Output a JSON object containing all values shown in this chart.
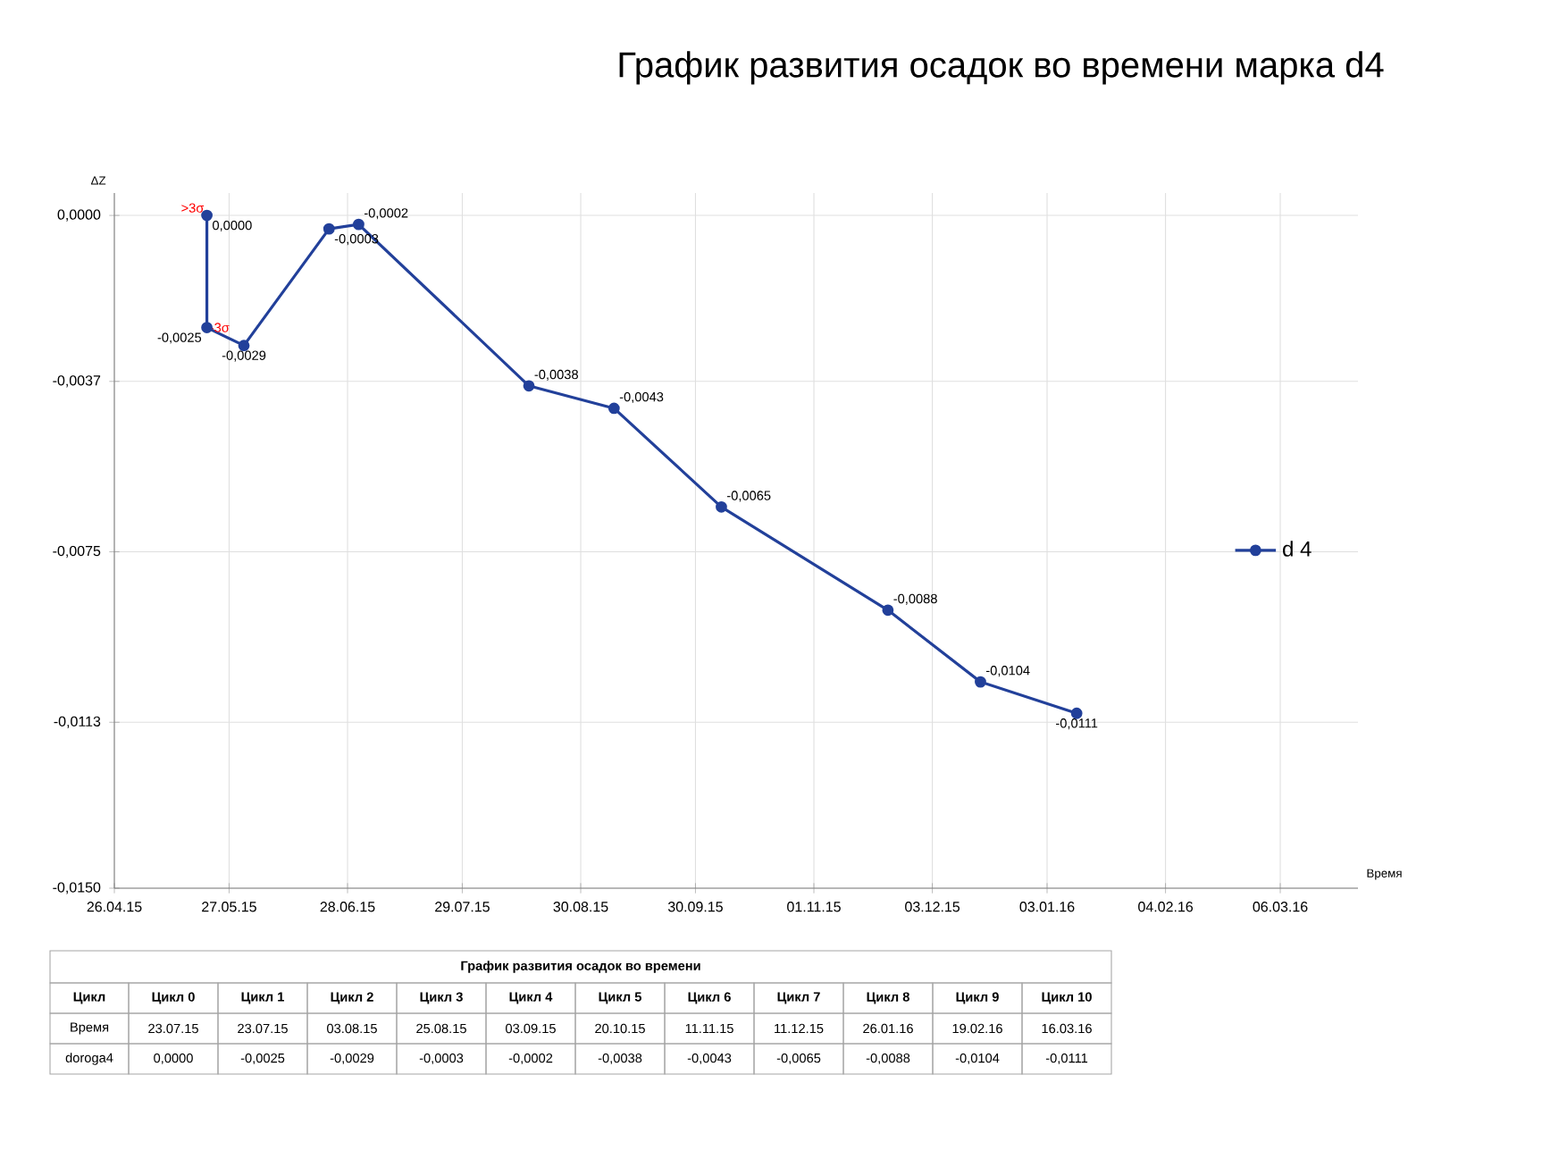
{
  "chart_data": {
    "type": "line",
    "title": "График развития осадок во времени марка d4",
    "xlabel": "Время",
    "ylabel": "ΔZ",
    "x": [
      "2015-05-21",
      "2015-05-21",
      "2015-05-31",
      "2015-06-23",
      "2015-07-01",
      "2015-08-16",
      "2015-09-08",
      "2015-10-07",
      "2015-11-21",
      "2015-12-16",
      "2016-01-11"
    ],
    "series": [
      {
        "name": "d 4",
        "color": "#22409a",
        "values": [
          0.0,
          -0.0025,
          -0.0029,
          -0.0003,
          -0.0002,
          -0.0038,
          -0.0043,
          -0.0065,
          -0.0088,
          -0.0104,
          -0.0111
        ],
        "value_labels": [
          "0,0000",
          "-0,0025",
          "-0,0029",
          "-0,0003",
          "-0,0002",
          "-0,0038",
          "-0,0043",
          "-0,0065",
          "-0,0088",
          "-0,0104",
          "-0,0111"
        ]
      }
    ],
    "xlim": [
      "2015-04-26",
      "2016-03-27"
    ],
    "xticks": [
      {
        "value": "2015-04-26",
        "label": "26.04.15"
      },
      {
        "value": "2015-05-27",
        "label": "27.05.15"
      },
      {
        "value": "2015-06-28",
        "label": "28.06.15"
      },
      {
        "value": "2015-07-29",
        "label": "29.07.15"
      },
      {
        "value": "2015-08-30",
        "label": "30.08.15"
      },
      {
        "value": "2015-09-30",
        "label": "30.09.15"
      },
      {
        "value": "2015-11-01",
        "label": "01.11.15"
      },
      {
        "value": "2015-12-03",
        "label": "03.12.15"
      },
      {
        "value": "2016-01-03",
        "label": "03.01.16"
      },
      {
        "value": "2016-02-04",
        "label": "04.02.16"
      },
      {
        "value": "2016-03-06",
        "label": "06.03.16"
      }
    ],
    "ylim": [
      -0.015,
      0.0005
    ],
    "yticks": [
      {
        "value": 0.0,
        "label": "0,0000"
      },
      {
        "value": -0.0037,
        "label": "-0,0037"
      },
      {
        "value": -0.0075,
        "label": "-0,0075"
      },
      {
        "value": -0.0113,
        "label": "-0,0113"
      },
      {
        "value": -0.015,
        "label": "-0,0150"
      }
    ],
    "grid": true,
    "legend": "right",
    "marker": "circle",
    "line_style": "solid",
    "annotations": [
      {
        "text": ">3σ",
        "x": "2015-05-21",
        "y": 0.0
      },
      {
        "text": "-3σ",
        "x": "2015-05-21",
        "y": -0.0025
      },
      "График развития осадок во времени",
      "Цикл",
      "Цикл 0",
      "Цикл 1",
      "Цикл 2",
      "Цикл 3",
      "Цикл 4",
      "Цикл 5",
      "Цикл 6",
      "Цикл 7",
      "Цикл 8",
      "Цикл 9",
      "Цикл 10",
      "Время",
      "23.07.15",
      "23.07.15",
      "03.08.15",
      "25.08.15",
      "03.09.15",
      "20.10.15",
      "11.11.15",
      "11.12.15",
      "26.01.16",
      "19.02.16",
      "16.03.16",
      "doroga4",
      "0,0000",
      "-0,0025",
      "-0,0029",
      "-0,0003",
      "-0,0002",
      "-0,0038",
      "-0,0043",
      "-0,0065",
      "-0,0088",
      "-0,0104",
      "-0,0111"
    ]
  }
}
